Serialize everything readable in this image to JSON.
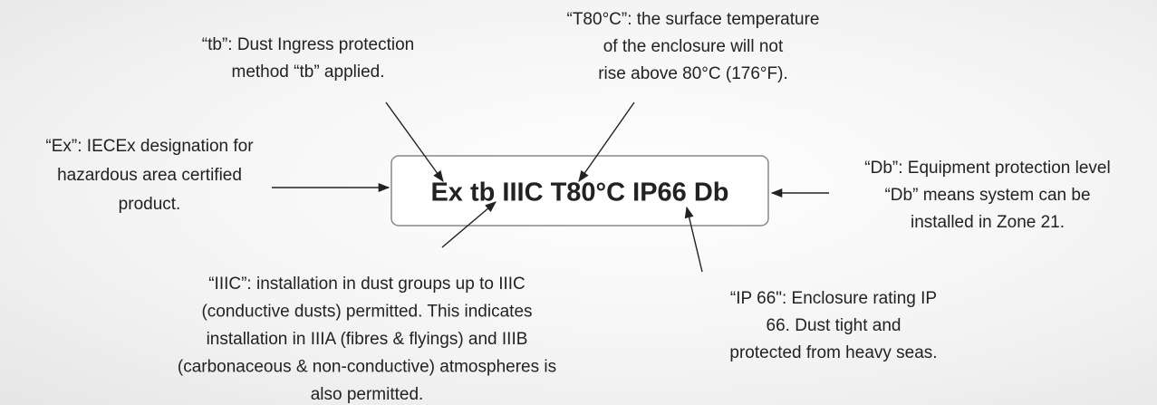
{
  "center": "Ex tb IIIC T80°C IP66 Db",
  "annotations": [
    {
      "lines": [
        "“tb”: Dust Ingress protection",
        "method “tb” applied."
      ]
    },
    {
      "lines": [
        "“T80°C”: the surface temperature",
        "of the enclosure will not",
        "rise above 80°C (176°F)."
      ]
    },
    {
      "lines": [
        "“Ex”: IECEx designation for",
        "hazardous area certified",
        "product."
      ]
    },
    {
      "lines": [
        "“Db”: Equipment protection level",
        "“Db” means system can be",
        "installed in Zone 21."
      ]
    },
    {
      "lines": [
        "“IIIC”: installation in dust groups up to IIIC",
        "(conductive dusts) permitted. This indicates",
        "installation in IIIA (fibres & flyings) and IIIB",
        "(carbonaceous & non-conductive) atmospheres  is",
        "also permitted."
      ]
    },
    {
      "lines": [
        "“IP 66\": Enclosure rating IP",
        "66. Dust tight and",
        "protected from heavy seas."
      ]
    }
  ]
}
